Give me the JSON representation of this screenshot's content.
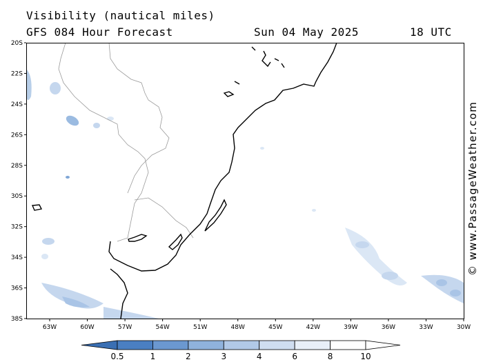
{
  "title": {
    "variable": "Visibility (nautical miles)",
    "model": "GFS 084 Hour Forecast",
    "date": "Sun 04 May 2025",
    "time": "18 UTC"
  },
  "watermark": "© www.PassageWeather.com",
  "axes": {
    "lat_labels": [
      "20S",
      "22S",
      "24S",
      "26S",
      "28S",
      "30S",
      "32S",
      "34S",
      "36S",
      "38S"
    ],
    "lon_labels": [
      "63W",
      "60W",
      "57W",
      "54W",
      "51W",
      "48W",
      "45W",
      "42W",
      "39W",
      "36W",
      "33W",
      "30W"
    ]
  },
  "legend": {
    "labels": [
      "0.5",
      "1",
      "2",
      "3",
      "4",
      "6",
      "8",
      "10"
    ],
    "colors": [
      "#3a6fb3",
      "#4a7fc2",
      "#6b98d0",
      "#8fb2dc",
      "#b1c9e7",
      "#cfddf0",
      "#e8eff8",
      "#ffffff"
    ]
  }
}
